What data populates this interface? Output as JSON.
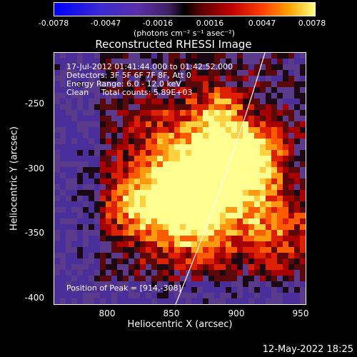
{
  "colorbar": {
    "ticks": [
      "-0.0078",
      "-0.0047",
      "-0.0016",
      "0.0016",
      "0.0047",
      "0.0078"
    ],
    "unit": "(photons cm⁻² s⁻¹ asec⁻²)"
  },
  "title": "Reconstructed RHESSI Image",
  "info": {
    "time_range": "17-Jul-2012 01:41:44.000 to 01:42:52.000",
    "detectors": "Detectors: 3F 5F 6F 7F 8F, Att 0",
    "energy_range": "Energy Range: 6.0 - 12.0 keV",
    "method": "Clean     Total counts: 5.89E+03",
    "peak": "Position of Peak = [914,-308]"
  },
  "axes": {
    "xlabel": "Heliocentric X (arcsec)",
    "ylabel": "Heliocentric Y (arcsec)",
    "xticks": [
      "800",
      "850",
      "900",
      "950"
    ],
    "yticks": [
      "-250",
      "-300",
      "-350",
      "-400"
    ]
  },
  "timestamp": "12-May-2022 18:25",
  "colors": {
    "limb": "#ffffff",
    "background": "#000000"
  }
}
